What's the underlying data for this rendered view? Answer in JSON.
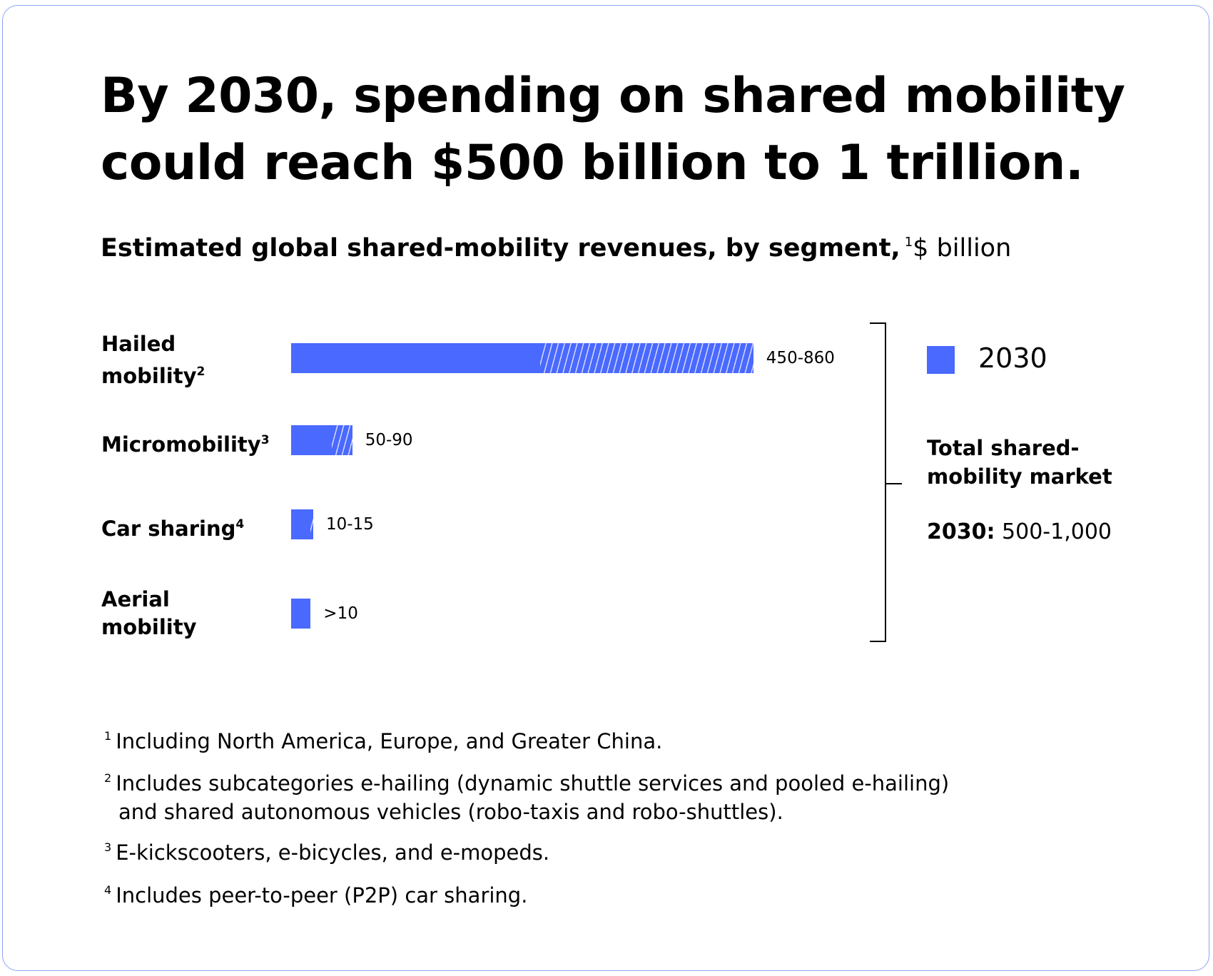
{
  "title": "By 2030, spending on shared mobility could reach $500 billion to 1 trillion.",
  "chart_data": {
    "type": "bar",
    "orientation": "horizontal",
    "title": "Estimated global shared-mobility revenues, by segment,",
    "title_footnote": "1",
    "unit": "$ billion",
    "categories": [
      "Hailed mobility",
      "Micromobility",
      "Car sharing",
      "Aerial mobility"
    ],
    "category_footnotes": [
      "2",
      "3",
      "4",
      ""
    ],
    "series": [
      {
        "name": "2030",
        "low": [
          450,
          50,
          10,
          10
        ],
        "high": [
          860,
          90,
          15,
          10
        ],
        "labels": [
          "450-860",
          "50-90",
          "10-15",
          ">10"
        ]
      }
    ],
    "range_shown_as": "hatched",
    "legend": {
      "label": "2030",
      "placement": "right"
    },
    "colors": {
      "bar": "#4a69ff",
      "border": "#8ea3f5"
    },
    "total": {
      "label": "Total shared-mobility market",
      "label_lines": [
        "Total shared-",
        "mobility market"
      ],
      "year": "2030:",
      "value": "500-1,000"
    }
  },
  "footnotes": [
    {
      "mark": "1",
      "lines": [
        "Including North America, Europe, and Greater China."
      ]
    },
    {
      "mark": "2",
      "lines": [
        "Includes subcategories e-hailing (dynamic shuttle services and pooled e-hailing)",
        "and shared autonomous vehicles (robo-taxis and robo-shuttles)."
      ]
    },
    {
      "mark": "3",
      "lines": [
        "E-kickscooters, e-bicycles, and e-mopeds."
      ]
    },
    {
      "mark": "4",
      "lines": [
        "Includes peer-to-peer (P2P) car sharing."
      ]
    }
  ]
}
